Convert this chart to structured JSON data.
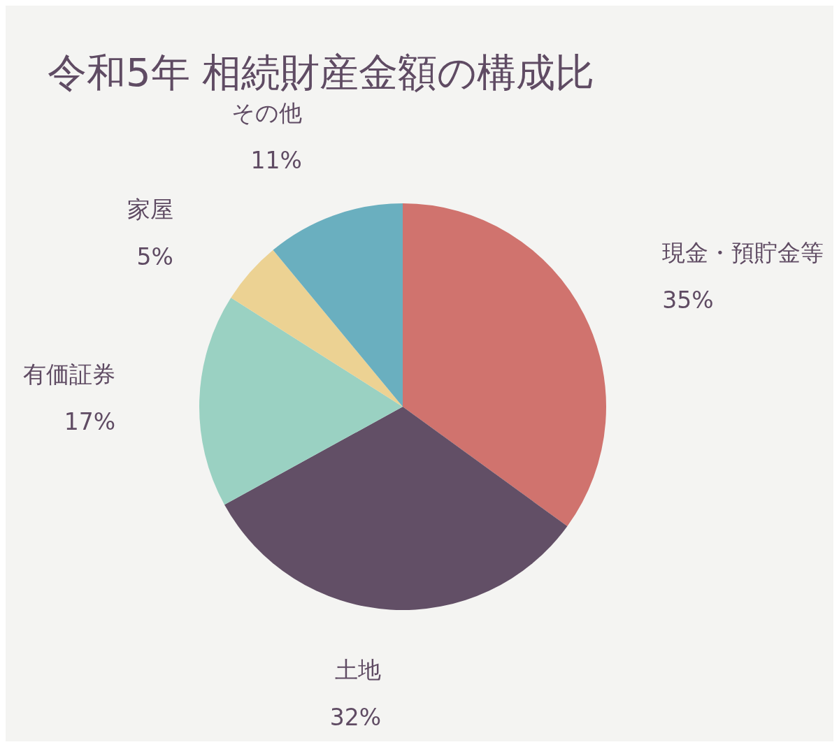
{
  "chart_data": {
    "type": "pie",
    "title": "令和5年 相続財産金額の構成比",
    "categories": [
      "現金・預貯金等",
      "土地",
      "有価証券",
      "家屋",
      "その他"
    ],
    "values": [
      35,
      32,
      17,
      5,
      11
    ],
    "value_labels": [
      "35%",
      "32%",
      "17%",
      "5%",
      "11%"
    ],
    "colors": [
      "#d0736e",
      "#624f66",
      "#9ad1c2",
      "#ecd293",
      "#6aafbf"
    ],
    "legend": false
  }
}
